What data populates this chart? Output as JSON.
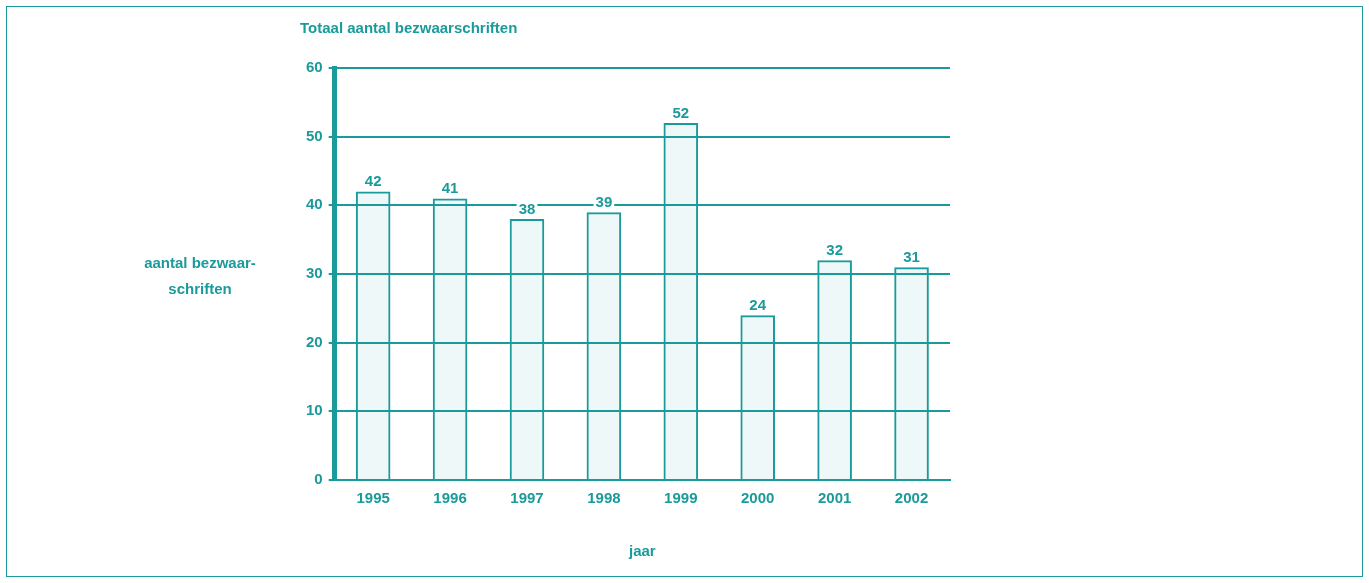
{
  "chart_data": {
    "type": "bar",
    "title": "Totaal aantal bezwaarschriften",
    "xlabel": "jaar",
    "ylabel": "aantal bezwaar-schriften",
    "categories": [
      "1995",
      "1996",
      "1997",
      "1998",
      "1999",
      "2000",
      "2001",
      "2002"
    ],
    "values": [
      42,
      41,
      38,
      39,
      52,
      24,
      32,
      31
    ],
    "color": "#1a9a9a",
    "ylim": [
      0,
      60
    ],
    "yticks": [
      0,
      10,
      20,
      30,
      40,
      50,
      60
    ],
    "grid": "y",
    "data_labels": true,
    "legend": false
  }
}
